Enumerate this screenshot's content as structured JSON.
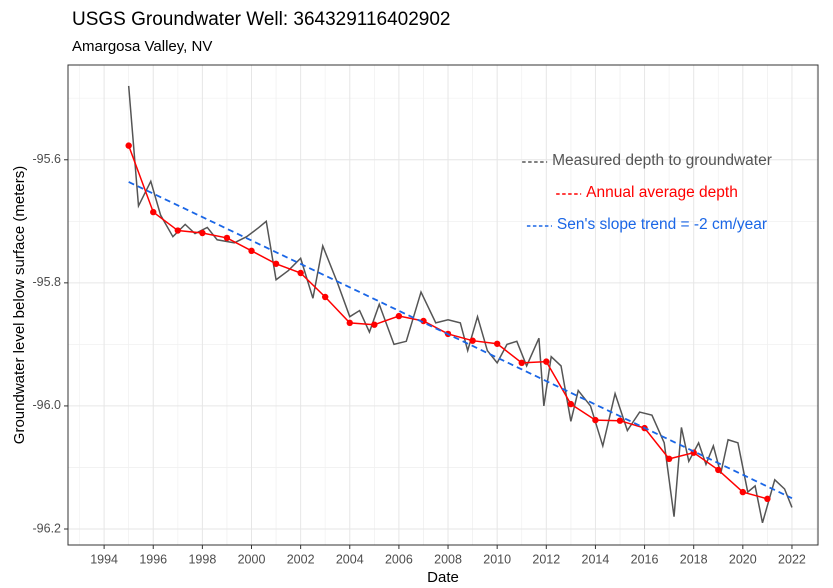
{
  "chart_data": {
    "type": "line",
    "title": "USGS Groundwater Well: 364329116402902",
    "subtitle": "Amargosa Valley, NV",
    "x_label": "Date",
    "y_label": "Groundwater level below surface (meters)",
    "xlim": [
      1992.53,
      2023.06
    ],
    "ylim": [
      -96.226,
      -95.446
    ],
    "xticks": [
      1994,
      1996,
      1998,
      2000,
      2002,
      2004,
      2006,
      2008,
      2010,
      2012,
      2014,
      2016,
      2018,
      2020,
      2022
    ],
    "yticks": [
      -95.6,
      -95.8,
      {
        "value": -96.0,
        "label": "-96.0"
      },
      -96.2
    ],
    "grid": true,
    "series": [
      {
        "name": "Measured depth to groundwater",
        "color": "#555555",
        "markers": false,
        "dashed": false,
        "x": [
          1995.0,
          1995.4,
          1995.9,
          1996.3,
          1996.8,
          1997.3,
          1997.7,
          1998.2,
          1998.6,
          1999.3,
          1999.8,
          2000.3,
          2000.6,
          2001.0,
          2001.5,
          2002.0,
          2002.5,
          2002.9,
          2003.5,
          2004.0,
          2004.4,
          2004.8,
          2005.2,
          2005.8,
          2006.3,
          2006.9,
          2007.5,
          2008.0,
          2008.5,
          2008.8,
          2009.2,
          2009.6,
          2010.0,
          2010.4,
          2010.8,
          2011.2,
          2011.7,
          2011.9,
          2012.2,
          2012.6,
          2013.0,
          2013.3,
          2013.8,
          2014.3,
          2014.8,
          2015.3,
          2015.8,
          2016.3,
          2016.8,
          2017.2,
          2017.5,
          2017.8,
          2018.2,
          2018.5,
          2018.8,
          2019.1,
          2019.4,
          2019.8,
          2020.2,
          2020.5,
          2020.8,
          2021.3,
          2021.7,
          2022.0
        ],
        "values": [
          -95.48,
          -95.675,
          -95.635,
          -95.69,
          -95.725,
          -95.705,
          -95.72,
          -95.71,
          -95.73,
          -95.735,
          -95.725,
          -95.71,
          -95.7,
          -95.795,
          -95.78,
          -95.76,
          -95.825,
          -95.74,
          -95.8,
          -95.855,
          -95.845,
          -95.88,
          -95.835,
          -95.9,
          -95.895,
          -95.815,
          -95.865,
          -95.86,
          -95.865,
          -95.91,
          -95.855,
          -95.91,
          -95.93,
          -95.9,
          -95.895,
          -95.935,
          -95.89,
          -96.0,
          -95.92,
          -95.935,
          -96.025,
          -95.975,
          -96.0,
          -96.065,
          -95.98,
          -96.04,
          -96.01,
          -96.015,
          -96.06,
          -96.18,
          -96.035,
          -96.09,
          -96.06,
          -96.095,
          -96.065,
          -96.11,
          -96.055,
          -96.06,
          -96.14,
          -96.13,
          -96.19,
          -96.12,
          -96.135,
          -96.165
        ]
      },
      {
        "name": "Annual average depth",
        "color": "#ff0000",
        "markers": true,
        "dashed": false,
        "x": [
          1995,
          1996,
          1997,
          1998,
          1999,
          2000,
          2001,
          2002,
          2003,
          2004,
          2005,
          2006,
          2007,
          2008,
          2009,
          2010,
          2011,
          2012,
          2013,
          2014,
          2015,
          2016,
          2017,
          2018,
          2019,
          2020,
          2021
        ],
        "values": [
          -95.577,
          -95.685,
          -95.715,
          -95.719,
          -95.727,
          -95.748,
          -95.769,
          -95.784,
          -95.823,
          -95.865,
          -95.868,
          -95.854,
          -95.862,
          -95.883,
          -95.894,
          -95.899,
          -95.93,
          -95.928,
          -95.997,
          -96.023,
          -96.024,
          -96.036,
          -96.086,
          -96.076,
          -96.104,
          -96.14,
          -96.151
        ]
      },
      {
        "name": "Sen's slope trend = -2 cm/year",
        "color": "#1a66e6",
        "markers": false,
        "dashed": true,
        "x": [
          1995,
          2022
        ],
        "values": [
          -95.636,
          -96.15
        ]
      }
    ]
  }
}
